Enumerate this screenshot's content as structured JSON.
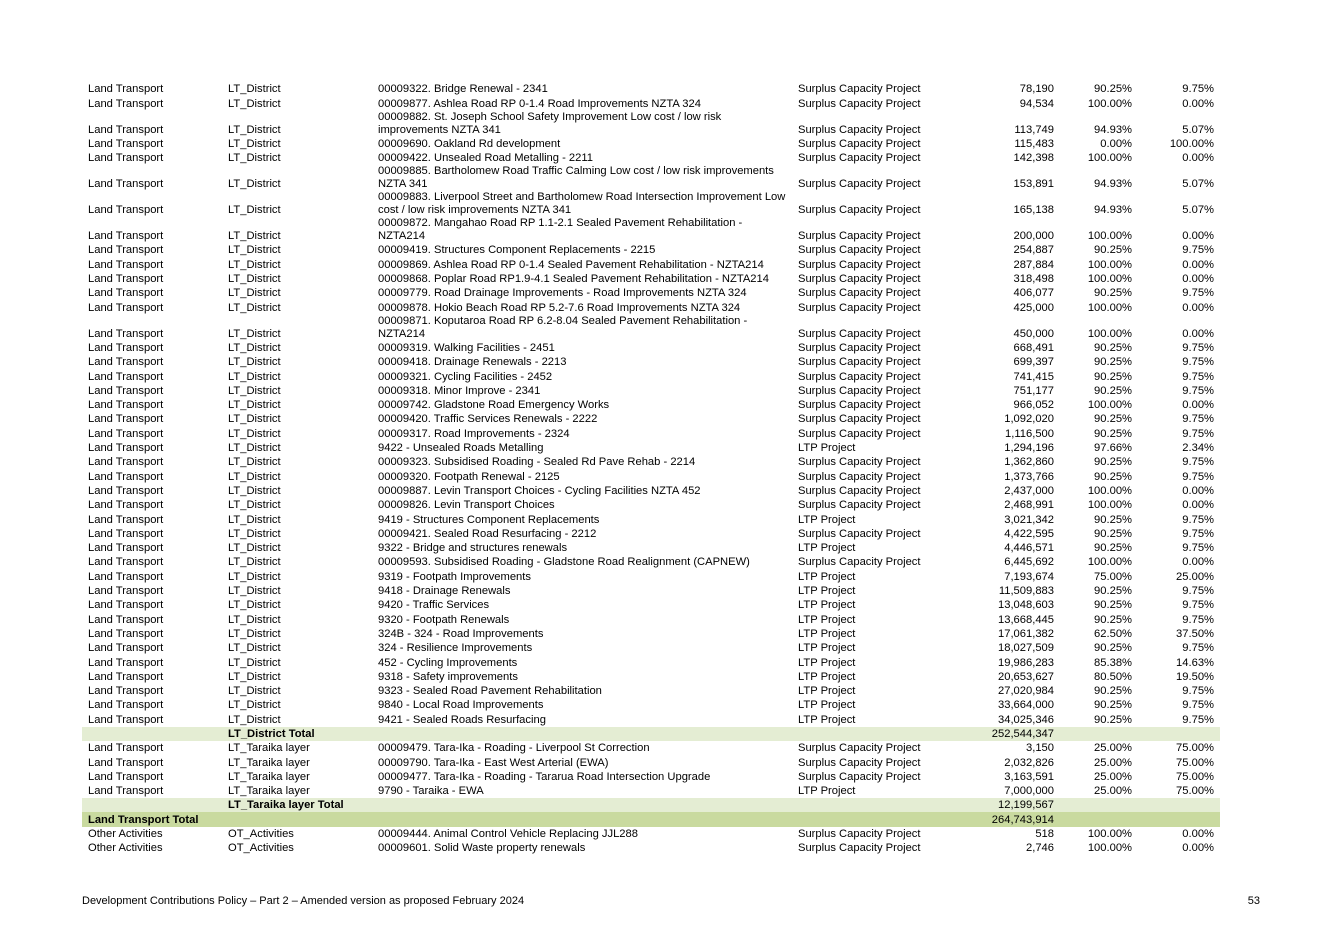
{
  "rows": [
    {
      "kind": "row",
      "activity": "Land Transport",
      "group": "LT_District",
      "project": "00009322. Bridge Renewal - 2341",
      "type": "Surplus Capacity Project",
      "amount": "78,190",
      "pct1": "90.25%",
      "pct2": "9.75%"
    },
    {
      "kind": "row",
      "activity": "Land Transport",
      "group": "LT_District",
      "project": "00009877. Ashlea Road RP 0-1.4 Road Improvements NZTA 324",
      "type": "Surplus Capacity Project",
      "amount": "94,534",
      "pct1": "100.00%",
      "pct2": "0.00%"
    },
    {
      "kind": "row",
      "two": true,
      "activity": "Land Transport",
      "group": "LT_District",
      "project": "00009882. St. Joseph School Safety Improvement Low cost / low risk improvements NZTA 341",
      "type": "Surplus Capacity Project",
      "amount": "113,749",
      "pct1": "94.93%",
      "pct2": "5.07%"
    },
    {
      "kind": "row",
      "activity": "Land Transport",
      "group": "LT_District",
      "project": "00009690. Oakland Rd development",
      "type": "Surplus Capacity Project",
      "amount": "115,483",
      "pct1": "0.00%",
      "pct2": "100.00%"
    },
    {
      "kind": "row",
      "activity": "Land Transport",
      "group": "LT_District",
      "project": "00009422. Unsealed Road Metalling - 2211",
      "type": "Surplus Capacity Project",
      "amount": "142,398",
      "pct1": "100.00%",
      "pct2": "0.00%"
    },
    {
      "kind": "row",
      "two": true,
      "activity": "Land Transport",
      "group": "LT_District",
      "project": "00009885. Bartholomew Road Traffic Calming Low cost / low risk improvements NZTA 341",
      "type": "Surplus Capacity Project",
      "amount": "153,891",
      "pct1": "94.93%",
      "pct2": "5.07%"
    },
    {
      "kind": "row",
      "two": true,
      "activity": "Land Transport",
      "group": "LT_District",
      "project": "00009883. Liverpool Street and Bartholomew Road Intersection Improvement Low    cost / low risk improvements NZTA 341",
      "type": "Surplus Capacity Project",
      "amount": "165,138",
      "pct1": "94.93%",
      "pct2": "5.07%"
    },
    {
      "kind": "row",
      "two": true,
      "activity": "Land Transport",
      "group": "LT_District",
      "project": "00009872. Mangahao Road RP 1.1-2.1 Sealed Pavement Rehabilitation - NZTA214",
      "type": "Surplus Capacity Project",
      "amount": "200,000",
      "pct1": "100.00%",
      "pct2": "0.00%"
    },
    {
      "kind": "row",
      "activity": "Land Transport",
      "group": "LT_District",
      "project": "00009419. Structures Component Replacements - 2215",
      "type": "Surplus Capacity Project",
      "amount": "254,887",
      "pct1": "90.25%",
      "pct2": "9.75%"
    },
    {
      "kind": "row",
      "activity": "Land Transport",
      "group": "LT_District",
      "project": "00009869. Ashlea Road RP 0-1.4 Sealed Pavement Rehabilitation - NZTA214",
      "type": "Surplus Capacity Project",
      "amount": "287,884",
      "pct1": "100.00%",
      "pct2": "0.00%"
    },
    {
      "kind": "row",
      "activity": "Land Transport",
      "group": "LT_District",
      "project": "00009868. Poplar Road RP1.9-4.1 Sealed Pavement Rehabilitation - NZTA214",
      "type": "Surplus Capacity Project",
      "amount": "318,498",
      "pct1": "100.00%",
      "pct2": "0.00%"
    },
    {
      "kind": "row",
      "activity": "Land Transport",
      "group": "LT_District",
      "project": "00009779. Road Drainage Improvements - Road Improvements NZTA 324",
      "type": "Surplus Capacity Project",
      "amount": "406,077",
      "pct1": "90.25%",
      "pct2": "9.75%"
    },
    {
      "kind": "row",
      "activity": "Land Transport",
      "group": "LT_District",
      "project": "00009878. Hokio Beach Road RP 5.2-7.6 Road Improvements NZTA 324",
      "type": "Surplus Capacity Project",
      "amount": "425,000",
      "pct1": "100.00%",
      "pct2": "0.00%"
    },
    {
      "kind": "row",
      "two": true,
      "activity": "Land Transport",
      "group": "LT_District",
      "project": "00009871. Koputaroa Road RP 6.2-8.04 Sealed Pavement Rehabilitation - NZTA214",
      "type": "Surplus Capacity Project",
      "amount": "450,000",
      "pct1": "100.00%",
      "pct2": "0.00%"
    },
    {
      "kind": "row",
      "activity": "Land Transport",
      "group": "LT_District",
      "project": "00009319. Walking Facilities - 2451",
      "type": "Surplus Capacity Project",
      "amount": "668,491",
      "pct1": "90.25%",
      "pct2": "9.75%"
    },
    {
      "kind": "row",
      "activity": "Land Transport",
      "group": "LT_District",
      "project": "00009418. Drainage Renewals - 2213",
      "type": "Surplus Capacity Project",
      "amount": "699,397",
      "pct1": "90.25%",
      "pct2": "9.75%"
    },
    {
      "kind": "row",
      "activity": "Land Transport",
      "group": "LT_District",
      "project": "00009321. Cycling Facilities - 2452",
      "type": "Surplus Capacity Project",
      "amount": "741,415",
      "pct1": "90.25%",
      "pct2": "9.75%"
    },
    {
      "kind": "row",
      "activity": "Land Transport",
      "group": "LT_District",
      "project": "00009318. Minor Improve - 2341",
      "type": "Surplus Capacity Project",
      "amount": "751,177",
      "pct1": "90.25%",
      "pct2": "9.75%"
    },
    {
      "kind": "row",
      "activity": "Land Transport",
      "group": "LT_District",
      "project": "00009742. Gladstone Road Emergency Works",
      "type": "Surplus Capacity Project",
      "amount": "966,052",
      "pct1": "100.00%",
      "pct2": "0.00%"
    },
    {
      "kind": "row",
      "activity": "Land Transport",
      "group": "LT_District",
      "project": "00009420. Traffic Services Renewals - 2222",
      "type": "Surplus Capacity Project",
      "amount": "1,092,020",
      "pct1": "90.25%",
      "pct2": "9.75%"
    },
    {
      "kind": "row",
      "activity": "Land Transport",
      "group": "LT_District",
      "project": "00009317. Road Improvements - 2324",
      "type": "Surplus Capacity Project",
      "amount": "1,116,500",
      "pct1": "90.25%",
      "pct2": "9.75%"
    },
    {
      "kind": "row",
      "activity": "Land Transport",
      "group": "LT_District",
      "project": "9422 - Unsealed Roads Metalling",
      "type": "LTP Project",
      "amount": "1,294,196",
      "pct1": "97.66%",
      "pct2": "2.34%"
    },
    {
      "kind": "row",
      "activity": "Land Transport",
      "group": "LT_District",
      "project": "00009323. Subsidised Roading - Sealed Rd Pave Rehab - 2214",
      "type": "Surplus Capacity Project",
      "amount": "1,362,860",
      "pct1": "90.25%",
      "pct2": "9.75%"
    },
    {
      "kind": "row",
      "activity": "Land Transport",
      "group": "LT_District",
      "project": "00009320. Footpath Renewal - 2125",
      "type": "Surplus Capacity Project",
      "amount": "1,373,766",
      "pct1": "90.25%",
      "pct2": "9.75%"
    },
    {
      "kind": "row",
      "activity": "Land Transport",
      "group": "LT_District",
      "project": "00009887. Levin Transport Choices - Cycling Facilities NZTA 452",
      "type": "Surplus Capacity Project",
      "amount": "2,437,000",
      "pct1": "100.00%",
      "pct2": "0.00%"
    },
    {
      "kind": "row",
      "activity": "Land Transport",
      "group": "LT_District",
      "project": "00009826. Levin Transport Choices",
      "type": "Surplus Capacity Project",
      "amount": "2,468,991",
      "pct1": "100.00%",
      "pct2": "0.00%"
    },
    {
      "kind": "row",
      "activity": "Land Transport",
      "group": "LT_District",
      "project": "9419 - Structures Component Replacements",
      "type": "LTP Project",
      "amount": "3,021,342",
      "pct1": "90.25%",
      "pct2": "9.75%"
    },
    {
      "kind": "row",
      "activity": "Land Transport",
      "group": "LT_District",
      "project": "00009421. Sealed Road Resurfacing - 2212",
      "type": "Surplus Capacity Project",
      "amount": "4,422,595",
      "pct1": "90.25%",
      "pct2": "9.75%"
    },
    {
      "kind": "row",
      "activity": "Land Transport",
      "group": "LT_District",
      "project": "9322 - Bridge and structures renewals",
      "type": "LTP Project",
      "amount": "4,446,571",
      "pct1": "90.25%",
      "pct2": "9.75%"
    },
    {
      "kind": "row",
      "activity": "Land Transport",
      "group": "LT_District",
      "project": "00009593. Subsidised Roading - Gladstone Road Realignment (CAPNEW)",
      "type": "Surplus Capacity Project",
      "amount": "6,445,692",
      "pct1": "100.00%",
      "pct2": "0.00%"
    },
    {
      "kind": "row",
      "activity": "Land Transport",
      "group": "LT_District",
      "project": "9319 - Footpath Improvements",
      "type": "LTP Project",
      "amount": "7,193,674",
      "pct1": "75.00%",
      "pct2": "25.00%"
    },
    {
      "kind": "row",
      "activity": "Land Transport",
      "group": "LT_District",
      "project": "9418 - Drainage Renewals",
      "type": "LTP Project",
      "amount": "11,509,883",
      "pct1": "90.25%",
      "pct2": "9.75%"
    },
    {
      "kind": "row",
      "activity": "Land Transport",
      "group": "LT_District",
      "project": "9420 - Traffic Services",
      "type": "LTP Project",
      "amount": "13,048,603",
      "pct1": "90.25%",
      "pct2": "9.75%"
    },
    {
      "kind": "row",
      "activity": "Land Transport",
      "group": "LT_District",
      "project": "9320 - Footpath Renewals",
      "type": "LTP Project",
      "amount": "13,668,445",
      "pct1": "90.25%",
      "pct2": "9.75%"
    },
    {
      "kind": "row",
      "activity": "Land Transport",
      "group": "LT_District",
      "project": "324B - 324 - Road Improvements",
      "type": "LTP Project",
      "amount": "17,061,382",
      "pct1": "62.50%",
      "pct2": "37.50%"
    },
    {
      "kind": "row",
      "activity": "Land Transport",
      "group": "LT_District",
      "project": "324 - Resilience Improvements",
      "type": "LTP Project",
      "amount": "18,027,509",
      "pct1": "90.25%",
      "pct2": "9.75%"
    },
    {
      "kind": "row",
      "activity": "Land Transport",
      "group": "LT_District",
      "project": "452 - Cycling Improvements",
      "type": "LTP Project",
      "amount": "19,986,283",
      "pct1": "85.38%",
      "pct2": "14.63%"
    },
    {
      "kind": "row",
      "activity": "Land Transport",
      "group": "LT_District",
      "project": "9318 - Safety improvements",
      "type": "LTP Project",
      "amount": "20,653,627",
      "pct1": "80.50%",
      "pct2": "19.50%"
    },
    {
      "kind": "row",
      "activity": "Land Transport",
      "group": "LT_District",
      "project": "9323 - Sealed Road Pavement Rehabilitation",
      "type": "LTP Project",
      "amount": "27,020,984",
      "pct1": "90.25%",
      "pct2": "9.75%"
    },
    {
      "kind": "row",
      "activity": "Land Transport",
      "group": "LT_District",
      "project": "9840 - Local Road Improvements",
      "type": "LTP Project",
      "amount": "33,664,000",
      "pct1": "90.25%",
      "pct2": "9.75%"
    },
    {
      "kind": "row",
      "activity": "Land Transport",
      "group": "LT_District",
      "project": "9421 - Sealed Roads Resurfacing",
      "type": "LTP Project",
      "amount": "34,025,346",
      "pct1": "90.25%",
      "pct2": "9.75%"
    },
    {
      "kind": "sub",
      "activity": "",
      "group": "LT_District Total",
      "project": "",
      "type": "",
      "amount": "252,544,347",
      "pct1": "",
      "pct2": ""
    },
    {
      "kind": "row",
      "activity": "Land Transport",
      "group": "LT_Taraika layer",
      "project": "00009479. Tara-Ika - Roading - Liverpool St Correction",
      "type": "Surplus Capacity Project",
      "amount": "3,150",
      "pct1": "25.00%",
      "pct2": "75.00%"
    },
    {
      "kind": "row",
      "activity": "Land Transport",
      "group": "LT_Taraika layer",
      "project": "00009790. Tara-Ika - East West Arterial (EWA)",
      "type": "Surplus Capacity Project",
      "amount": "2,032,826",
      "pct1": "25.00%",
      "pct2": "75.00%"
    },
    {
      "kind": "row",
      "activity": "Land Transport",
      "group": "LT_Taraika layer",
      "project": "00009477. Tara-Ika - Roading - Tararua Road Intersection Upgrade",
      "type": "Surplus Capacity Project",
      "amount": "3,163,591",
      "pct1": "25.00%",
      "pct2": "75.00%"
    },
    {
      "kind": "row",
      "activity": "Land Transport",
      "group": "LT_Taraika layer",
      "project": "9790 - Taraika - EWA",
      "type": "LTP Project",
      "amount": "7,000,000",
      "pct1": "25.00%",
      "pct2": "75.00%"
    },
    {
      "kind": "sub",
      "activity": "",
      "group": "LT_Taraika layer Total",
      "project": "",
      "type": "",
      "amount": "12,199,567",
      "pct1": "",
      "pct2": ""
    },
    {
      "kind": "grand",
      "activity": "Land Transport Total",
      "group": "",
      "project": "",
      "type": "",
      "amount": "264,743,914",
      "pct1": "",
      "pct2": ""
    },
    {
      "kind": "row",
      "activity": "Other Activities",
      "group": "OT_Activities",
      "project": "00009444. Animal Control Vehicle Replacing JJL288",
      "type": "Surplus Capacity Project",
      "amount": "518",
      "pct1": "100.00%",
      "pct2": "0.00%"
    },
    {
      "kind": "row",
      "activity": "Other Activities",
      "group": "OT_Activities",
      "project": "00009601. Solid Waste property renewals",
      "type": "Surplus Capacity Project",
      "amount": "2,746",
      "pct1": "100.00%",
      "pct2": "0.00%"
    }
  ],
  "footer": {
    "text": "Development Contributions Policy – Part 2 –  Amended version as proposed February 2024",
    "page": "53"
  }
}
